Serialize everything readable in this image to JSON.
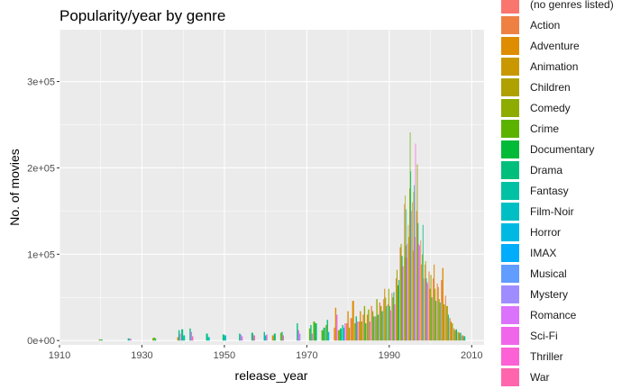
{
  "chart_data": {
    "type": "bar",
    "title": "Popularity/year by genre",
    "xlabel": "release_year",
    "ylabel": "No. of movies",
    "xlim": [
      1910,
      2013
    ],
    "ylim": [
      -5000,
      360000
    ],
    "x_ticks": [
      1910,
      1930,
      1950,
      1970,
      1990,
      2010
    ],
    "y_ticks": [
      {
        "value": 0,
        "label": "0e+00"
      },
      {
        "value": 100000,
        "label": "1e+05"
      },
      {
        "value": 200000,
        "label": "2e+05"
      },
      {
        "value": 300000,
        "label": "3e+05"
      }
    ],
    "grid": true,
    "legend_position": "right",
    "legend": [
      {
        "name": "(no genres listed)",
        "color": "#F8766D"
      },
      {
        "name": "Action",
        "color": "#EE8042"
      },
      {
        "name": "Adventure",
        "color": "#DE8C00"
      },
      {
        "name": "Animation",
        "color": "#C99800"
      },
      {
        "name": "Children",
        "color": "#AFA100"
      },
      {
        "name": "Comedy",
        "color": "#8EAB00"
      },
      {
        "name": "Crime",
        "color": "#5BB300"
      },
      {
        "name": "Documentary",
        "color": "#00BA38"
      },
      {
        "name": "Drama",
        "color": "#00BF7D"
      },
      {
        "name": "Fantasy",
        "color": "#00C1A3"
      },
      {
        "name": "Film-Noir",
        "color": "#00BFC4"
      },
      {
        "name": "Horror",
        "color": "#00B9E3"
      },
      {
        "name": "IMAX",
        "color": "#00ADFA"
      },
      {
        "name": "Musical",
        "color": "#619CFF"
      },
      {
        "name": "Mystery",
        "color": "#9F8CFF"
      },
      {
        "name": "Romance",
        "color": "#DB72FB"
      },
      {
        "name": "Sci-Fi",
        "color": "#F066EA"
      },
      {
        "name": "Thriller",
        "color": "#FC61D5"
      },
      {
        "name": "War",
        "color": "#FF65AC"
      }
    ],
    "bars": [
      {
        "x": 1920,
        "values": [
          [
            "Comedy",
            1500
          ],
          [
            "Drama",
            1200
          ]
        ]
      },
      {
        "x": 1927,
        "values": [
          [
            "Drama",
            2500
          ],
          [
            "Romance",
            2000
          ]
        ]
      },
      {
        "x": 1933,
        "values": [
          [
            "Comedy",
            3000
          ],
          [
            "Crime",
            3500
          ],
          [
            "Drama",
            2500
          ]
        ]
      },
      {
        "x": 1939,
        "values": [
          [
            "Adventure",
            4000
          ],
          [
            "Drama",
            12000
          ],
          [
            "Romance",
            8000
          ]
        ]
      },
      {
        "x": 1940,
        "values": [
          [
            "Drama",
            13000
          ],
          [
            "Fantasy",
            6000
          ]
        ]
      },
      {
        "x": 1942,
        "values": [
          [
            "Drama",
            14000
          ],
          [
            "Romance",
            10000
          ],
          [
            "War",
            5000
          ]
        ]
      },
      {
        "x": 1946,
        "values": [
          [
            "Drama",
            8000
          ],
          [
            "Film-Noir",
            4000
          ]
        ]
      },
      {
        "x": 1950,
        "values": [
          [
            "Drama",
            7000
          ],
          [
            "Film-Noir",
            6000
          ]
        ]
      },
      {
        "x": 1954,
        "values": [
          [
            "Drama",
            8000
          ],
          [
            "Mystery",
            7000
          ],
          [
            "Thriller",
            5000
          ]
        ]
      },
      {
        "x": 1957,
        "values": [
          [
            "Drama",
            9000
          ],
          [
            "War",
            6000
          ]
        ]
      },
      {
        "x": 1960,
        "values": [
          [
            "Drama",
            10000
          ],
          [
            "Horror",
            6000
          ],
          [
            "Thriller",
            7000
          ]
        ]
      },
      {
        "x": 1962,
        "values": [
          [
            "Adventure",
            6000
          ],
          [
            "Drama",
            8000
          ]
        ]
      },
      {
        "x": 1964,
        "values": [
          [
            "Comedy",
            9000
          ],
          [
            "Drama",
            10000
          ],
          [
            "War",
            6000
          ]
        ]
      },
      {
        "x": 1968,
        "values": [
          [
            "Drama",
            20000
          ],
          [
            "Sci-Fi",
            12000
          ],
          [
            "Mystery",
            8000
          ]
        ]
      },
      {
        "x": 1971,
        "values": [
          [
            "Crime",
            14000
          ],
          [
            "Drama",
            18000
          ],
          [
            "Sci-Fi",
            8000
          ]
        ]
      },
      {
        "x": 1972,
        "values": [
          [
            "Crime",
            22000
          ],
          [
            "Drama",
            20000
          ]
        ]
      },
      {
        "x": 1974,
        "values": [
          [
            "Crime",
            12000
          ],
          [
            "Drama",
            15000
          ]
        ]
      },
      {
        "x": 1975,
        "values": [
          [
            "Comedy",
            18000
          ],
          [
            "Drama",
            24000
          ],
          [
            "Horror",
            10000
          ]
        ]
      },
      {
        "x": 1977,
        "values": [
          [
            "Action",
            15000
          ],
          [
            "Adventure",
            38000
          ],
          [
            "Sci-Fi",
            30000
          ]
        ]
      },
      {
        "x": 1978,
        "values": [
          [
            "Comedy",
            12000
          ],
          [
            "Drama",
            14000
          ]
        ]
      },
      {
        "x": 1979,
        "values": [
          [
            "Drama",
            18000
          ],
          [
            "Horror",
            15000
          ],
          [
            "Sci-Fi",
            20000
          ]
        ]
      },
      {
        "x": 1980,
        "values": [
          [
            "Action",
            20000
          ],
          [
            "Adventure",
            34000
          ],
          [
            "Comedy",
            15000
          ]
        ]
      },
      {
        "x": 1981,
        "values": [
          [
            "Action",
            26000
          ],
          [
            "Adventure",
            46000
          ]
        ]
      },
      {
        "x": 1982,
        "values": [
          [
            "Comedy",
            20000
          ],
          [
            "Drama",
            28000
          ],
          [
            "Sci-Fi",
            22000
          ]
        ]
      },
      {
        "x": 1983,
        "values": [
          [
            "Action",
            22000
          ],
          [
            "Adventure",
            34000
          ],
          [
            "Comedy",
            22000
          ]
        ]
      },
      {
        "x": 1984,
        "values": [
          [
            "Action",
            30000
          ],
          [
            "Comedy",
            40000
          ],
          [
            "Drama",
            20000
          ]
        ]
      },
      {
        "x": 1985,
        "values": [
          [
            "Adventure",
            30000
          ],
          [
            "Comedy",
            36000
          ],
          [
            "Sci-Fi",
            22000
          ]
        ]
      },
      {
        "x": 1986,
        "values": [
          [
            "Action",
            40000
          ],
          [
            "Comedy",
            34000
          ],
          [
            "Drama",
            28000
          ]
        ]
      },
      {
        "x": 1987,
        "values": [
          [
            "Action",
            28000
          ],
          [
            "Comedy",
            48000
          ],
          [
            "Drama",
            30000
          ]
        ]
      },
      {
        "x": 1988,
        "values": [
          [
            "Action",
            44000
          ],
          [
            "Comedy",
            40000
          ],
          [
            "Drama",
            34000
          ]
        ]
      },
      {
        "x": 1989,
        "values": [
          [
            "Action",
            48000
          ],
          [
            "Adventure",
            60000
          ],
          [
            "Comedy",
            50000
          ],
          [
            "Drama",
            40000
          ]
        ]
      },
      {
        "x": 1990,
        "values": [
          [
            "Action",
            42000
          ],
          [
            "Comedy",
            60000
          ],
          [
            "Drama",
            40000
          ],
          [
            "Thriller",
            35000
          ]
        ]
      },
      {
        "x": 1991,
        "values": [
          [
            "Action",
            55000
          ],
          [
            "Comedy",
            50000
          ],
          [
            "Drama",
            56000
          ],
          [
            "Thriller",
            42000
          ]
        ]
      },
      {
        "x": 1992,
        "values": [
          [
            "Action",
            72000
          ],
          [
            "Comedy",
            82000
          ],
          [
            "Crime",
            64000
          ],
          [
            "Drama",
            70000
          ]
        ]
      },
      {
        "x": 1993,
        "values": [
          [
            "Action",
            108000
          ],
          [
            "Comedy",
            112000
          ],
          [
            "Drama",
            98000
          ],
          [
            "Thriller",
            86000
          ]
        ]
      },
      {
        "x": 1994,
        "values": [
          [
            "Action",
            158000
          ],
          [
            "Adventure",
            96000
          ],
          [
            "Comedy",
            168000
          ],
          [
            "Crime",
            110000
          ],
          [
            "Drama",
            152000
          ],
          [
            "Romance",
            96000
          ],
          [
            "Thriller",
            112000
          ]
        ]
      },
      {
        "x": 1995,
        "values": [
          [
            "Action",
            134000
          ],
          [
            "Adventure",
            120000
          ],
          [
            "Comedy",
            176000
          ],
          [
            "Crime",
            241000
          ],
          [
            "Drama",
            196000
          ],
          [
            "Thriller",
            150000
          ]
        ]
      },
      {
        "x": 1996,
        "values": [
          [
            "Action",
            160000
          ],
          [
            "Adventure",
            104000
          ],
          [
            "Comedy",
            172000
          ],
          [
            "Drama",
            180000
          ],
          [
            "Sci-Fi",
            120000
          ],
          [
            "Thriller",
            228000
          ]
        ]
      },
      {
        "x": 1997,
        "values": [
          [
            "Action",
            150000
          ],
          [
            "Comedy",
            204000
          ],
          [
            "Drama",
            136000
          ],
          [
            "Sci-Fi",
            112000
          ],
          [
            "Thriller",
            110000
          ]
        ]
      },
      {
        "x": 1998,
        "values": [
          [
            "Action",
            116000
          ],
          [
            "Adventure",
            88000
          ],
          [
            "Comedy",
            100000
          ],
          [
            "Drama",
            134000
          ],
          [
            "Sci-Fi",
            72000
          ]
        ]
      },
      {
        "x": 1999,
        "values": [
          [
            "Action",
            88000
          ],
          [
            "Comedy",
            92000
          ],
          [
            "Drama",
            72000
          ],
          [
            "Sci-Fi",
            68000
          ],
          [
            "Thriller",
            66000
          ]
        ]
      },
      {
        "x": 2000,
        "values": [
          [
            "Action",
            80000
          ],
          [
            "Adventure",
            60000
          ],
          [
            "Comedy",
            76000
          ],
          [
            "Drama",
            50000
          ]
        ]
      },
      {
        "x": 2001,
        "values": [
          [
            "Action",
            72000
          ],
          [
            "Adventure",
            88000
          ],
          [
            "Comedy",
            60000
          ],
          [
            "Drama",
            46000
          ]
        ]
      },
      {
        "x": 2002,
        "values": [
          [
            "Action",
            66000
          ],
          [
            "Adventure",
            62000
          ],
          [
            "Comedy",
            48000
          ],
          [
            "Drama",
            44000
          ]
        ]
      },
      {
        "x": 2003,
        "values": [
          [
            "Action",
            70000
          ],
          [
            "Adventure",
            84000
          ],
          [
            "Comedy",
            42000
          ]
        ]
      },
      {
        "x": 2004,
        "values": [
          [
            "Action",
            52000
          ],
          [
            "Adventure",
            40000
          ],
          [
            "Comedy",
            40000
          ],
          [
            "Drama",
            30000
          ]
        ]
      },
      {
        "x": 2005,
        "values": [
          [
            "Action",
            26000
          ],
          [
            "Adventure",
            22000
          ],
          [
            "Comedy",
            20000
          ]
        ]
      },
      {
        "x": 2006,
        "values": [
          [
            "Action",
            14000
          ],
          [
            "Comedy",
            12000
          ],
          [
            "Drama",
            13000
          ]
        ]
      },
      {
        "x": 2007,
        "values": [
          [
            "Action",
            10000
          ],
          [
            "Comedy",
            9000
          ],
          [
            "Drama",
            9000
          ]
        ]
      },
      {
        "x": 2008,
        "values": [
          [
            "Action",
            6000
          ],
          [
            "Drama",
            5000
          ]
        ]
      }
    ]
  }
}
